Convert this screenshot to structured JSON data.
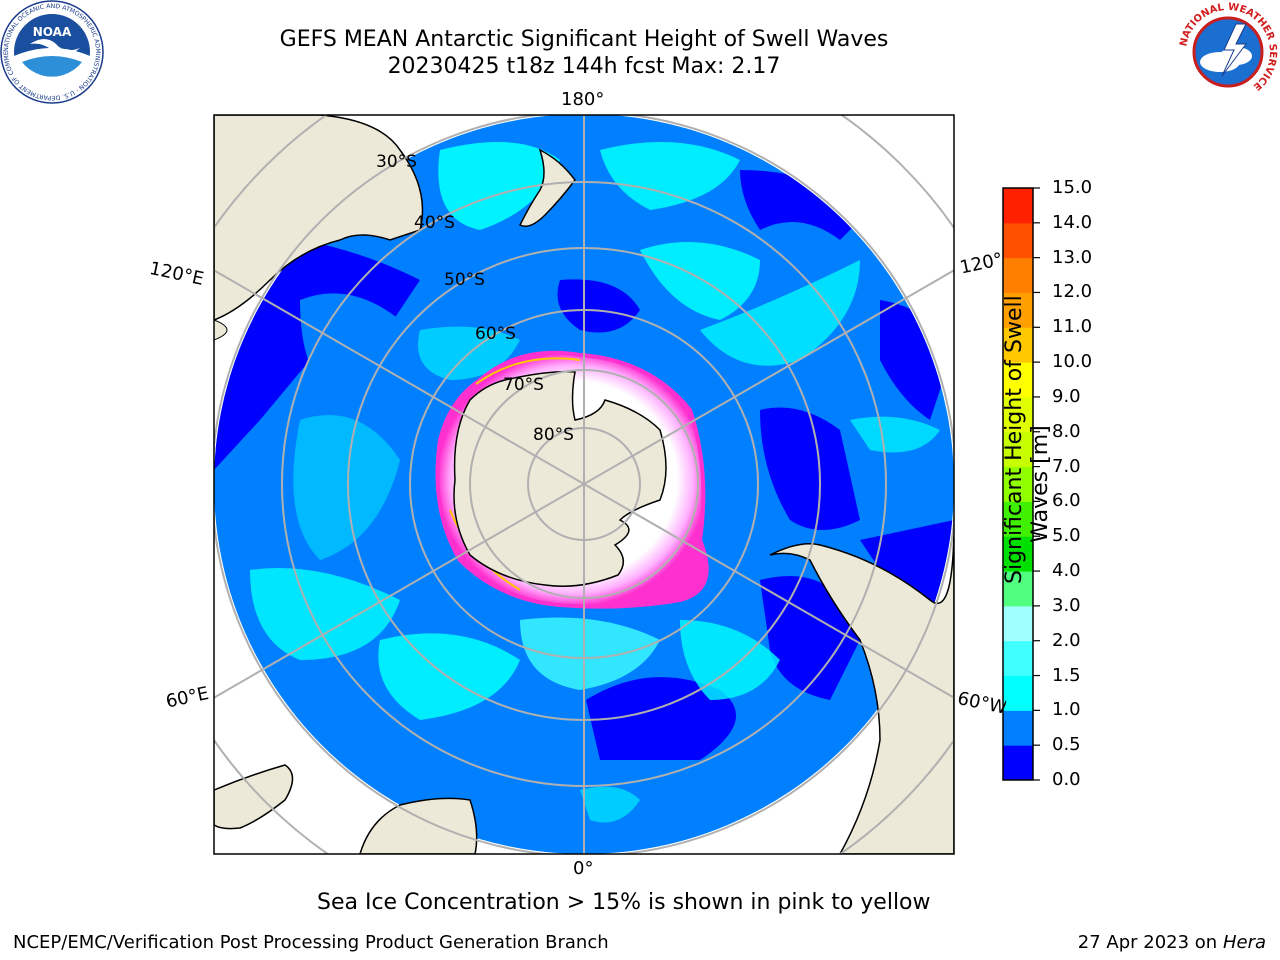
{
  "title": {
    "line1": "GEFS MEAN Antarctic Significant Height of Swell Waves",
    "line2": "20230425 t18z 144h fcst   Max: 2.17"
  },
  "map": {
    "longitude_labels": {
      "top": "180°",
      "bottom": "0°",
      "left_upper": "120°E",
      "left_lower": "60°E",
      "right_upper": "120°",
      "right_lower": "60°W"
    },
    "latitude_labels": [
      "30°S",
      "40°S",
      "50°S",
      "60°S",
      "70°S",
      "80°S"
    ],
    "sea_ice_note": "Sea Ice Concentration > 15% is shown in pink to yellow"
  },
  "colorbar": {
    "title": "Significant Height of Swell Waves [m]",
    "title_line1": "Significant Height of Swell",
    "title_line2": "Waves [m]",
    "ticks": [
      "0.0",
      "0.5",
      "1.0",
      "1.5",
      "2.0",
      "3.0",
      "4.0",
      "5.0",
      "6.0",
      "7.0",
      "8.0",
      "9.0",
      "10.0",
      "11.0",
      "12.0",
      "13.0",
      "14.0",
      "15.0"
    ],
    "colors": [
      "#0000ff",
      "#0080ff",
      "#00ffff",
      "#40ffff",
      "#a0ffff",
      "#50ff80",
      "#00e000",
      "#40f000",
      "#90ff00",
      "#c8ff00",
      "#e0ff00",
      "#ffff00",
      "#ffc800",
      "#ffa000",
      "#ff8000",
      "#ff5000",
      "#ff2000"
    ]
  },
  "footer": {
    "left": "NCEP/EMC/Verification Post Processing Product Generation Branch",
    "right_date": "27 Apr 2023 on",
    "right_host": "Hera"
  },
  "logos": {
    "noaa": "NOAA",
    "noaa_ring": "NATIONAL OCEANIC AND ATMOSPHERIC ADMINISTRATION · U.S. DEPARTMENT OF COMMERCE",
    "nws_ring": "NATIONAL WEATHER SERVICE"
  }
}
